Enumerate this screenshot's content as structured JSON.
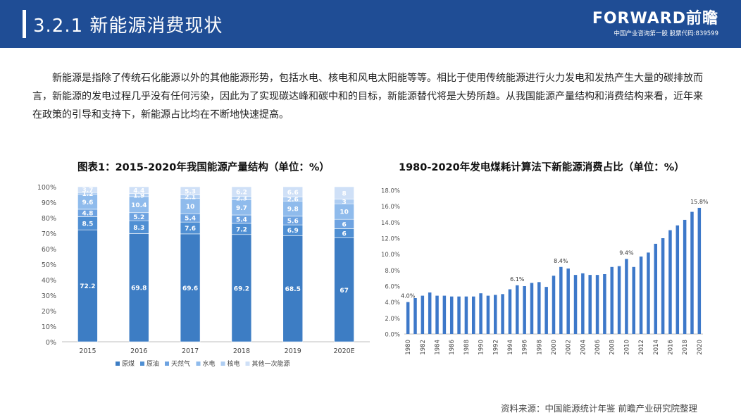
{
  "header": {
    "title": "3.2.1  新能源消费现状",
    "brand": "FORWARD前瞻",
    "tagline": "中国产业咨询第一股 股票代码:839599"
  },
  "intro": "新能源是指除了传统石化能源以外的其他能源形势，包括水电、核电和风电太阳能等等。相比于使用传统能源进行火力发电和发热产生大量的碳排放而言，新能源的发电过程几乎没有任何污染，因此为了实现碳达峰和碳中和的目标，新能源替代将是大势所趋。从我国能源产量结构和消费结构来看，近年来在政策的引导和支持下，新能源占比均在不断地快速提高。",
  "source": "资料来源：中国能源统计年鉴 前瞻产业研究院整理",
  "colors": {
    "header": "#1f4d95",
    "coal": "#3d7dc4",
    "oil": "#4f8fd3",
    "gas": "#6ea3e1",
    "hydro": "#8fbbec",
    "nuclear": "#aecdf2",
    "other": "#cfe0f7",
    "bar": "#3d78c9"
  },
  "chart_data": [
    {
      "type": "bar",
      "stacked": true,
      "title": "图表1：2015-2020年我国能源产量结构（单位：%）",
      "categories": [
        "2015",
        "2016",
        "2017",
        "2018",
        "2019",
        "2020E"
      ],
      "series": [
        {
          "name": "原煤",
          "values": [
            72.2,
            69.8,
            69.6,
            69.2,
            68.5,
            67
          ]
        },
        {
          "name": "原油",
          "values": [
            8.5,
            8.3,
            7.6,
            7.2,
            6.9,
            6
          ]
        },
        {
          "name": "天然气",
          "values": [
            4.8,
            5.2,
            5.4,
            5.4,
            5.6,
            6
          ]
        },
        {
          "name": "水电",
          "values": [
            9.6,
            10.4,
            10,
            9.7,
            9.8,
            10
          ]
        },
        {
          "name": "核电",
          "values": [
            1.2,
            1.9,
            2.1,
            2.3,
            2.6,
            3
          ]
        },
        {
          "name": "其他一次能源",
          "values": [
            3.7,
            4.4,
            5.3,
            6.2,
            6.6,
            8
          ]
        }
      ],
      "labels": [
        [
          "72.2",
          "69.8",
          "69.6",
          "69.2",
          "68.5",
          "67"
        ],
        [
          "8.5",
          "8.3",
          "7.6",
          "7.2",
          "6.9",
          "6"
        ],
        [
          "4.8",
          "5.2",
          "5.4",
          "5.4",
          "5.6",
          "6"
        ],
        [
          "9.6",
          "10.4",
          "10",
          "9.7",
          "9.8",
          "10"
        ],
        [
          "1.2",
          "1.9",
          "2.1",
          "2.3",
          "2.6",
          "3"
        ],
        [
          "3.7",
          "4.4",
          "5.3",
          "6.2",
          "6.6",
          "8"
        ]
      ],
      "yticks": [
        "0%",
        "10%",
        "20%",
        "30%",
        "40%",
        "50%",
        "60%",
        "70%",
        "80%",
        "90%",
        "100%"
      ],
      "ylim": [
        0,
        100
      ],
      "legend": "bottom"
    },
    {
      "type": "bar",
      "title": "1980-2020年发电煤耗计算法下新能源消费占比（单位：%）",
      "x": [
        1980,
        1981,
        1982,
        1983,
        1984,
        1985,
        1986,
        1987,
        1988,
        1989,
        1990,
        1991,
        1992,
        1993,
        1994,
        1995,
        1996,
        1997,
        1998,
        1999,
        2000,
        2001,
        2002,
        2003,
        2004,
        2005,
        2006,
        2007,
        2008,
        2009,
        2010,
        2011,
        2012,
        2013,
        2014,
        2015,
        2016,
        2017,
        2018,
        2019,
        2020
      ],
      "values": [
        4.0,
        4.5,
        4.8,
        5.2,
        4.8,
        4.8,
        4.7,
        4.7,
        4.7,
        4.7,
        5.1,
        4.8,
        4.9,
        5.0,
        5.6,
        6.1,
        6.0,
        6.4,
        6.5,
        5.9,
        7.3,
        8.4,
        8.2,
        7.4,
        7.6,
        7.4,
        7.4,
        7.5,
        8.4,
        8.5,
        9.4,
        8.4,
        9.7,
        10.2,
        11.3,
        12.0,
        13.0,
        13.6,
        14.3,
        15.3,
        15.8
      ],
      "xticks": [
        "1980",
        "1982",
        "1984",
        "1986",
        "1988",
        "1990",
        "1992",
        "1994",
        "1996",
        "1998",
        "2000",
        "2002",
        "2004",
        "2006",
        "2008",
        "2010",
        "2012",
        "2014",
        "2016",
        "2018",
        "2020"
      ],
      "yticks": [
        "0.0%",
        "2.0%",
        "4.0%",
        "6.0%",
        "8.0%",
        "10.0%",
        "12.0%",
        "14.0%",
        "16.0%",
        "18.0%"
      ],
      "ylim": [
        0,
        18
      ],
      "annotations": [
        {
          "year": 1980,
          "label": "4.0%"
        },
        {
          "year": 1995,
          "label": "6.1%"
        },
        {
          "year": 2001,
          "label": "8.4%"
        },
        {
          "year": 2010,
          "label": "9.4%"
        },
        {
          "year": 2020,
          "label": "15.8%"
        }
      ]
    }
  ]
}
